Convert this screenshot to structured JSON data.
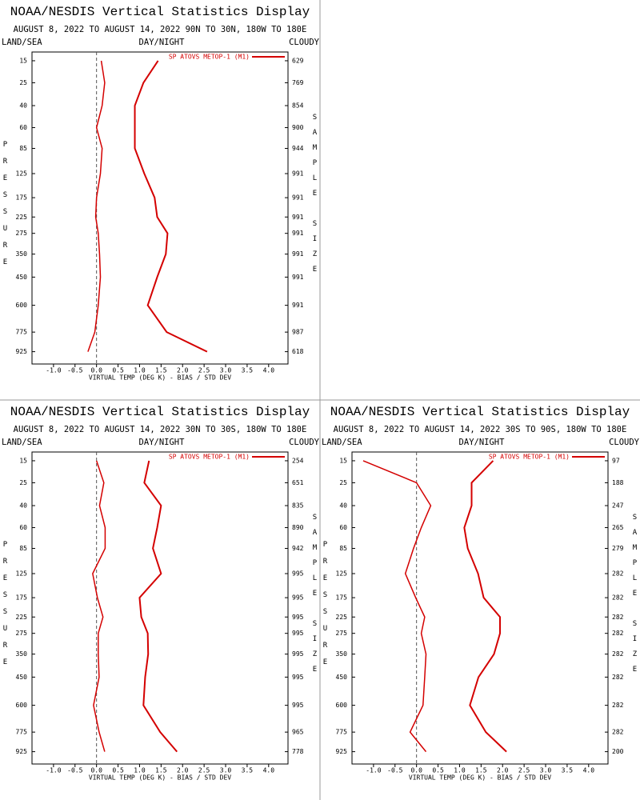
{
  "chart_data": [
    {
      "type": "line",
      "title": "NOAA/NESDIS Vertical Statistics Display",
      "subtitle": "AUGUST 8, 2022 TO AUGUST 14, 2022  90N TO 30N, 180W TO 180E",
      "land_sea_label": "LAND/SEA",
      "day_night_label": "DAY/NIGHT",
      "cloudy_label": "CLOUDY",
      "ylabel": "PRESSURE",
      "y2label": "SAMPLE SIZE",
      "xlabel": "VIRTUAL TEMP (DEG K) - BIAS / STD DEV",
      "y": [
        15,
        25,
        40,
        60,
        85,
        125,
        175,
        225,
        275,
        350,
        450,
        600,
        775,
        925
      ],
      "ylim": [
        12,
        1030
      ],
      "yscale": "fourth-root",
      "xlim": [
        -1.5,
        4.45
      ],
      "xticks": [
        {
          "value": -1,
          "label": "-1.0"
        },
        -0.5,
        {
          "value": 0,
          "label": "0.0"
        },
        0.5,
        {
          "value": 1,
          "label": "1.0"
        },
        1.5,
        {
          "value": 2,
          "label": "2.0"
        },
        2.5,
        {
          "value": 3,
          "label": "3.0"
        },
        3.5,
        {
          "value": 4,
          "label": "4.0"
        }
      ],
      "zero_line": true,
      "sample_size": [
        629,
        769,
        854,
        900,
        944,
        991,
        991,
        991,
        991,
        991,
        991,
        991,
        987,
        618
      ],
      "series": [
        {
          "name": "SP ATOVS METOP-1 (M1)",
          "color": "#d40000",
          "bias": [
            0.11,
            0.19,
            0.13,
            0.0,
            0.13,
            0.09,
            0.0,
            -0.02,
            0.04,
            0.07,
            0.09,
            0.04,
            -0.04,
            -0.2
          ],
          "std": [
            1.43,
            1.09,
            0.89,
            0.89,
            0.89,
            1.11,
            1.35,
            1.41,
            1.65,
            1.61,
            1.41,
            1.19,
            1.63,
            2.57
          ]
        }
      ]
    },
    {
      "type": "line",
      "title": "NOAA/NESDIS Vertical Statistics Display",
      "subtitle": "AUGUST 8, 2022 TO AUGUST 14, 2022  30N TO 30S, 180W TO 180E",
      "land_sea_label": "LAND/SEA",
      "day_night_label": "DAY/NIGHT",
      "cloudy_label": "CLOUDY",
      "ylabel": "PRESSURE",
      "y2label": "SAMPLE SIZE",
      "xlabel": "VIRTUAL TEMP (DEG K) - BIAS / STD DEV",
      "y": [
        15,
        25,
        40,
        60,
        85,
        125,
        175,
        225,
        275,
        350,
        450,
        600,
        775,
        925
      ],
      "ylim": [
        12,
        1030
      ],
      "yscale": "fourth-root",
      "xlim": [
        -1.5,
        4.45
      ],
      "xticks": [
        {
          "value": -1,
          "label": "-1.0"
        },
        -0.5,
        {
          "value": 0,
          "label": "0.0"
        },
        0.5,
        {
          "value": 1,
          "label": "1.0"
        },
        1.5,
        {
          "value": 2,
          "label": "2.0"
        },
        2.5,
        {
          "value": 3,
          "label": "3.0"
        },
        3.5,
        {
          "value": 4,
          "label": "4.0"
        }
      ],
      "zero_line": true,
      "sample_size": [
        254,
        651,
        835,
        890,
        942,
        995,
        995,
        995,
        995,
        995,
        995,
        995,
        965,
        778
      ],
      "series": [
        {
          "name": "SP ATOVS METOP-1 (M1)",
          "color": "#d40000",
          "bias": [
            0.0,
            0.17,
            0.07,
            0.2,
            0.2,
            -0.09,
            0.02,
            0.15,
            0.04,
            0.04,
            0.06,
            -0.07,
            0.06,
            0.19
          ],
          "std": [
            1.22,
            1.11,
            1.5,
            1.41,
            1.31,
            1.5,
            1.0,
            1.04,
            1.19,
            1.2,
            1.13,
            1.09,
            1.48,
            1.87
          ]
        }
      ]
    },
    {
      "type": "line",
      "title": "NOAA/NESDIS Vertical Statistics Display",
      "subtitle": "AUGUST 8, 2022 TO AUGUST 14, 2022  30S TO 90S, 180W TO 180E",
      "land_sea_label": "LAND/SEA",
      "day_night_label": "DAY/NIGHT",
      "cloudy_label": "CLOUDY",
      "ylabel": "PRESSURE",
      "y2label": "SAMPLE SIZE",
      "xlabel": "VIRTUAL TEMP (DEG K) - BIAS / STD DEV",
      "y": [
        15,
        25,
        40,
        60,
        85,
        125,
        175,
        225,
        275,
        350,
        450,
        600,
        775,
        925
      ],
      "ylim": [
        12,
        1030
      ],
      "yscale": "fourth-root",
      "xlim": [
        -1.5,
        4.45
      ],
      "xticks": [
        {
          "value": -1,
          "label": "-1.0"
        },
        -0.5,
        {
          "value": 0,
          "label": "0.0"
        },
        0.5,
        {
          "value": 1,
          "label": "1.0"
        },
        1.5,
        {
          "value": 2,
          "label": "2.0"
        },
        2.5,
        {
          "value": 3,
          "label": "3.0"
        },
        3.5,
        {
          "value": 4,
          "label": "4.0"
        }
      ],
      "zero_line": true,
      "sample_size": [
        97,
        188,
        247,
        265,
        279,
        282,
        282,
        282,
        282,
        282,
        282,
        282,
        282,
        200
      ],
      "series": [
        {
          "name": "SP ATOVS METOP-1 (M1)",
          "color": "#d40000",
          "bias": [
            -1.24,
            0.0,
            0.33,
            0.11,
            -0.07,
            -0.26,
            -0.02,
            0.19,
            0.11,
            0.22,
            0.19,
            0.15,
            -0.15,
            0.22
          ],
          "std": [
            1.78,
            1.28,
            1.28,
            1.11,
            1.19,
            1.43,
            1.56,
            1.94,
            1.94,
            1.8,
            1.44,
            1.24,
            1.61,
            2.09
          ]
        }
      ]
    }
  ]
}
